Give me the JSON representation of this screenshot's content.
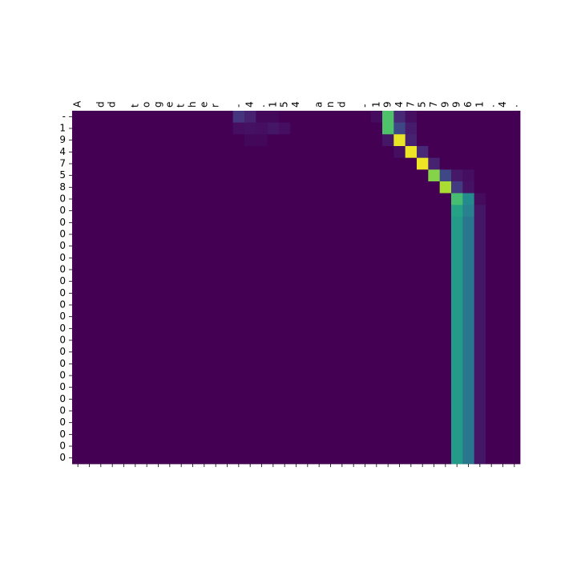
{
  "chart_data": {
    "type": "heatmap",
    "colormap": "viridis",
    "colorbar": false,
    "grid": false,
    "x_tick_position": "top",
    "x_tick_rotation_deg": 90,
    "xticklabels": [
      "A",
      " ",
      "d",
      "d",
      " ",
      "t",
      "o",
      "g",
      "e",
      "t",
      "h",
      "e",
      "r",
      " ",
      "-",
      "4",
      ".",
      "1",
      "5",
      "4",
      " ",
      "a",
      "n",
      "d",
      " ",
      "-",
      "1",
      "9",
      "4",
      "7",
      "5",
      "7",
      "9",
      "9",
      "6",
      "1",
      ".",
      "4",
      "."
    ],
    "yticklabels": [
      "-",
      "1",
      "9",
      "4",
      "7",
      "5",
      "8",
      "0",
      "0",
      "0",
      "0",
      "0",
      "0",
      "0",
      "0",
      "0",
      "0",
      "0",
      "0",
      "0",
      "0",
      "0",
      "0",
      "0",
      "0",
      "0",
      "0",
      "0",
      "0",
      "0"
    ],
    "value_range": [
      0,
      1
    ],
    "cells": [
      {
        "row": 0,
        "col": 14,
        "value": 0.16
      },
      {
        "row": 0,
        "col": 15,
        "value": 0.1
      },
      {
        "row": 0,
        "col": 16,
        "value": 0.02
      },
      {
        "row": 0,
        "col": 17,
        "value": 0.02
      },
      {
        "row": 0,
        "col": 26,
        "value": 0.03
      },
      {
        "row": 0,
        "col": 27,
        "value": 0.72
      },
      {
        "row": 0,
        "col": 28,
        "value": 0.12
      },
      {
        "row": 0,
        "col": 29,
        "value": 0.04
      },
      {
        "row": 1,
        "col": 14,
        "value": 0.04
      },
      {
        "row": 1,
        "col": 15,
        "value": 0.05
      },
      {
        "row": 1,
        "col": 16,
        "value": 0.04
      },
      {
        "row": 1,
        "col": 17,
        "value": 0.06
      },
      {
        "row": 1,
        "col": 18,
        "value": 0.04
      },
      {
        "row": 1,
        "col": 27,
        "value": 0.72
      },
      {
        "row": 1,
        "col": 28,
        "value": 0.22
      },
      {
        "row": 1,
        "col": 29,
        "value": 0.08
      },
      {
        "row": 2,
        "col": 15,
        "value": 0.02
      },
      {
        "row": 2,
        "col": 16,
        "value": 0.02
      },
      {
        "row": 2,
        "col": 27,
        "value": 0.06
      },
      {
        "row": 2,
        "col": 28,
        "value": 0.97
      },
      {
        "row": 2,
        "col": 29,
        "value": 0.1
      },
      {
        "row": 3,
        "col": 28,
        "value": 0.04
      },
      {
        "row": 3,
        "col": 29,
        "value": 0.98
      },
      {
        "row": 3,
        "col": 30,
        "value": 0.12
      },
      {
        "row": 4,
        "col": 30,
        "value": 0.98
      },
      {
        "row": 4,
        "col": 31,
        "value": 0.1
      },
      {
        "row": 5,
        "col": 31,
        "value": 0.82
      },
      {
        "row": 5,
        "col": 32,
        "value": 0.22
      },
      {
        "row": 5,
        "col": 33,
        "value": 0.07
      },
      {
        "row": 5,
        "col": 34,
        "value": 0.04
      },
      {
        "row": 6,
        "col": 32,
        "value": 0.88
      },
      {
        "row": 6,
        "col": 33,
        "value": 0.18
      },
      {
        "row": 6,
        "col": 34,
        "value": 0.05
      },
      {
        "row": 7,
        "col": 33,
        "value": 0.7
      },
      {
        "row": 7,
        "col": 34,
        "value": 0.48
      },
      {
        "row": 7,
        "col": 35,
        "value": 0.03
      },
      {
        "row": 8,
        "col": 33,
        "value": 0.58
      },
      {
        "row": 8,
        "col": 34,
        "value": 0.44
      },
      {
        "row": 8,
        "col": 35,
        "value": 0.06
      },
      {
        "row": 9,
        "col": 33,
        "value": 0.55
      },
      {
        "row": 9,
        "col": 34,
        "value": 0.4
      },
      {
        "row": 9,
        "col": 35,
        "value": 0.06
      },
      {
        "row": 10,
        "col": 33,
        "value": 0.55
      },
      {
        "row": 10,
        "col": 34,
        "value": 0.4
      },
      {
        "row": 10,
        "col": 35,
        "value": 0.06
      },
      {
        "row": 11,
        "col": 33,
        "value": 0.55
      },
      {
        "row": 11,
        "col": 34,
        "value": 0.4
      },
      {
        "row": 11,
        "col": 35,
        "value": 0.06
      },
      {
        "row": 12,
        "col": 33,
        "value": 0.55
      },
      {
        "row": 12,
        "col": 34,
        "value": 0.4
      },
      {
        "row": 12,
        "col": 35,
        "value": 0.06
      },
      {
        "row": 13,
        "col": 33,
        "value": 0.55
      },
      {
        "row": 13,
        "col": 34,
        "value": 0.4
      },
      {
        "row": 13,
        "col": 35,
        "value": 0.06
      },
      {
        "row": 14,
        "col": 33,
        "value": 0.55
      },
      {
        "row": 14,
        "col": 34,
        "value": 0.4
      },
      {
        "row": 14,
        "col": 35,
        "value": 0.06
      },
      {
        "row": 15,
        "col": 33,
        "value": 0.55
      },
      {
        "row": 15,
        "col": 34,
        "value": 0.4
      },
      {
        "row": 15,
        "col": 35,
        "value": 0.06
      },
      {
        "row": 16,
        "col": 33,
        "value": 0.55
      },
      {
        "row": 16,
        "col": 34,
        "value": 0.4
      },
      {
        "row": 16,
        "col": 35,
        "value": 0.06
      },
      {
        "row": 17,
        "col": 33,
        "value": 0.55
      },
      {
        "row": 17,
        "col": 34,
        "value": 0.4
      },
      {
        "row": 17,
        "col": 35,
        "value": 0.06
      },
      {
        "row": 18,
        "col": 33,
        "value": 0.55
      },
      {
        "row": 18,
        "col": 34,
        "value": 0.4
      },
      {
        "row": 18,
        "col": 35,
        "value": 0.06
      },
      {
        "row": 19,
        "col": 33,
        "value": 0.55
      },
      {
        "row": 19,
        "col": 34,
        "value": 0.4
      },
      {
        "row": 19,
        "col": 35,
        "value": 0.06
      },
      {
        "row": 20,
        "col": 33,
        "value": 0.55
      },
      {
        "row": 20,
        "col": 34,
        "value": 0.4
      },
      {
        "row": 20,
        "col": 35,
        "value": 0.06
      },
      {
        "row": 21,
        "col": 33,
        "value": 0.55
      },
      {
        "row": 21,
        "col": 34,
        "value": 0.4
      },
      {
        "row": 21,
        "col": 35,
        "value": 0.06
      },
      {
        "row": 22,
        "col": 33,
        "value": 0.55
      },
      {
        "row": 22,
        "col": 34,
        "value": 0.4
      },
      {
        "row": 22,
        "col": 35,
        "value": 0.06
      },
      {
        "row": 23,
        "col": 33,
        "value": 0.55
      },
      {
        "row": 23,
        "col": 34,
        "value": 0.4
      },
      {
        "row": 23,
        "col": 35,
        "value": 0.06
      },
      {
        "row": 24,
        "col": 33,
        "value": 0.55
      },
      {
        "row": 24,
        "col": 34,
        "value": 0.4
      },
      {
        "row": 24,
        "col": 35,
        "value": 0.06
      },
      {
        "row": 25,
        "col": 33,
        "value": 0.55
      },
      {
        "row": 25,
        "col": 34,
        "value": 0.4
      },
      {
        "row": 25,
        "col": 35,
        "value": 0.06
      },
      {
        "row": 26,
        "col": 33,
        "value": 0.55
      },
      {
        "row": 26,
        "col": 34,
        "value": 0.4
      },
      {
        "row": 26,
        "col": 35,
        "value": 0.06
      },
      {
        "row": 27,
        "col": 33,
        "value": 0.55
      },
      {
        "row": 27,
        "col": 34,
        "value": 0.4
      },
      {
        "row": 27,
        "col": 35,
        "value": 0.06
      },
      {
        "row": 28,
        "col": 33,
        "value": 0.55
      },
      {
        "row": 28,
        "col": 34,
        "value": 0.4
      },
      {
        "row": 28,
        "col": 35,
        "value": 0.06
      },
      {
        "row": 29,
        "col": 33,
        "value": 0.55
      },
      {
        "row": 29,
        "col": 34,
        "value": 0.4
      },
      {
        "row": 29,
        "col": 35,
        "value": 0.06
      }
    ]
  }
}
